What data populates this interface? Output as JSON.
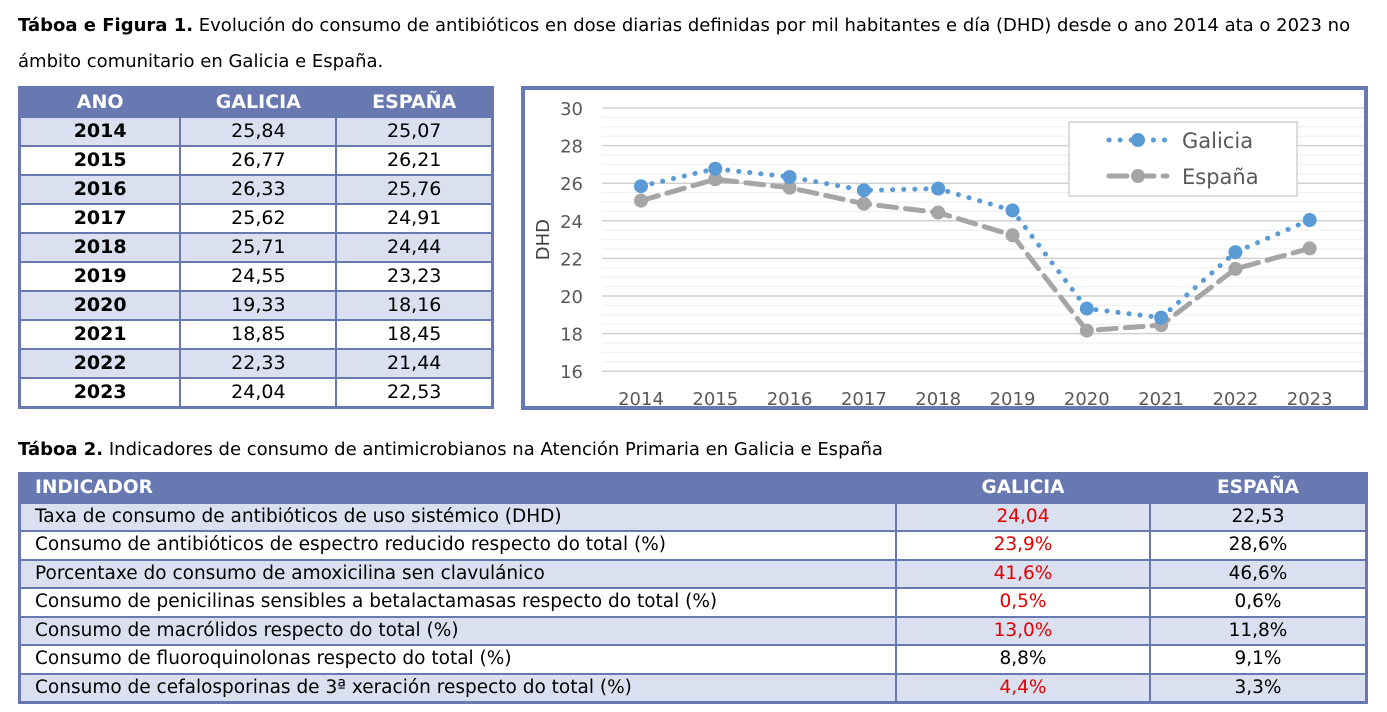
{
  "caption1": {
    "bold": "Táboa e Figura 1.",
    "text": " Evolución do consumo de antibióticos en dose diarias definidas por mil habitantes e día (DHD) desde o ano 2014 ata o 2023 no ámbito comunitario en Galicia e España."
  },
  "table1": {
    "headers": [
      "ANO",
      "GALICIA",
      "ESPAÑA"
    ],
    "rows": [
      [
        "2014",
        "25,84",
        "25,07"
      ],
      [
        "2015",
        "26,77",
        "26,21"
      ],
      [
        "2016",
        "26,33",
        "25,76"
      ],
      [
        "2017",
        "25,62",
        "24,91"
      ],
      [
        "2018",
        "25,71",
        "24,44"
      ],
      [
        "2019",
        "24,55",
        "23,23"
      ],
      [
        "2020",
        "19,33",
        "18,16"
      ],
      [
        "2021",
        "18,85",
        "18,45"
      ],
      [
        "2022",
        "22,33",
        "21,44"
      ],
      [
        "2023",
        "24,04",
        "22,53"
      ]
    ]
  },
  "chart_data": {
    "type": "line",
    "x": [
      "2014",
      "2015",
      "2016",
      "2017",
      "2018",
      "2019",
      "2020",
      "2021",
      "2022",
      "2023"
    ],
    "series": [
      {
        "name": "Galicia",
        "values": [
          25.84,
          26.77,
          26.33,
          25.62,
          25.71,
          24.55,
          19.33,
          18.85,
          22.33,
          24.04
        ],
        "color": "#5b9bd5",
        "style": "dotted"
      },
      {
        "name": "España",
        "values": [
          25.07,
          26.21,
          25.76,
          24.91,
          24.44,
          23.23,
          18.16,
          18.45,
          21.44,
          22.53
        ],
        "color": "#a5a5a5",
        "style": "dashed"
      }
    ],
    "ylabel": "DHD",
    "xlabel": "",
    "ylim": [
      16,
      30
    ],
    "yticks": [
      "16",
      "18",
      "20",
      "22",
      "24",
      "26",
      "28",
      "30"
    ],
    "grid": true,
    "legend": "top-right"
  },
  "caption2": {
    "bold": "Táboa 2.",
    "text": " Indicadores de consumo de antimicrobianos na Atención Primaria en Galicia e España"
  },
  "table2": {
    "headers": [
      "INDICADOR",
      "GALICIA",
      "ESPAÑA"
    ],
    "rows": [
      [
        "Taxa de consumo de antibióticos de uso sistémico (DHD)",
        "24,04",
        "22,53",
        true
      ],
      [
        "Consumo de antibióticos de espectro reducido respecto do total (%)",
        "23,9%",
        "28,6%",
        true
      ],
      [
        "Porcentaxe do consumo de amoxicilina sen clavulánico",
        "41,6%",
        "46,6%",
        true
      ],
      [
        "Consumo de penicilinas sensibles a betalactamasas respecto do total (%)",
        "0,5%",
        "0,6%",
        true
      ],
      [
        "Consumo de macrólidos respecto do total (%)",
        "13,0%",
        "11,8%",
        true
      ],
      [
        "Consumo de fluoroquinolonas respecto do total (%)",
        "8,8%",
        "9,1%",
        false
      ],
      [
        "Consumo de cefalosporinas de 3ª xeración respecto do total (%)",
        "4,4%",
        "3,3%",
        true
      ]
    ],
    "highlight_color": "#e00000"
  }
}
